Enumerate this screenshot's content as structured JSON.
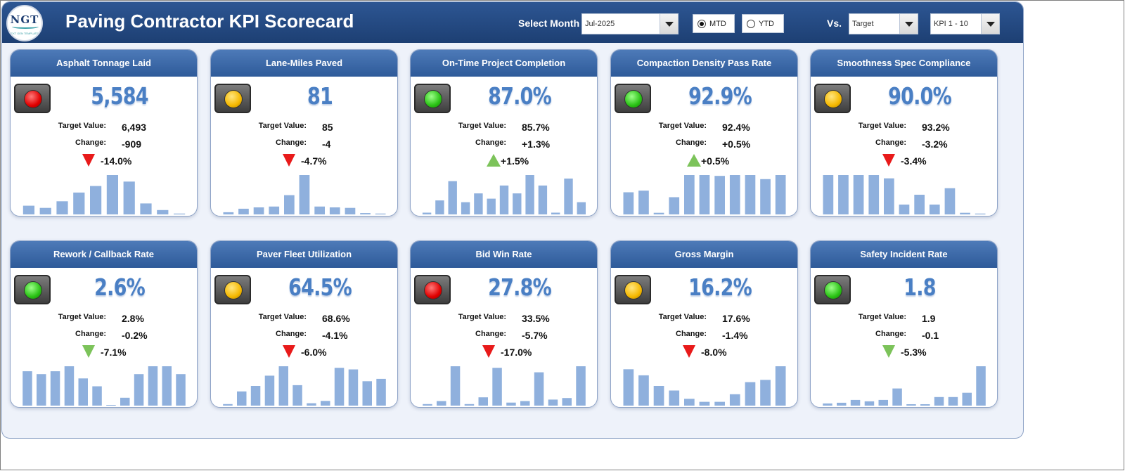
{
  "header": {
    "title": "Paving Contractor KPI Scorecard",
    "logo": {
      "text": "NGT",
      "subtext": "NEXT GEN TEMPLATES"
    },
    "select_month_label": "Select Month",
    "month_value": "Jul-2025",
    "mtd_label": "MTD",
    "ytd_label": "YTD",
    "period_selected": "MTD",
    "vs_label": "Vs.",
    "vs_value": "Target",
    "kpi_range_value": "KPI 1 - 10"
  },
  "colors": {
    "bar": "#8fb0dd",
    "up_green": "#7cc35a",
    "down_red": "#e81a1a",
    "header_blue": "#1f4378",
    "value_blue": "#4a7fc4"
  },
  "labels": {
    "target": "Target Value:",
    "change": "Change:"
  },
  "kpis": [
    {
      "name": "Asphalt Tonnage Laid",
      "value": "5,584",
      "target": "6,493",
      "change": "-909",
      "pct": "-14.0%",
      "status": "red",
      "arrow": "down",
      "arrow_color": "red",
      "trend": [
        2,
        1.5,
        3,
        5,
        6.5,
        9,
        7.5,
        2.5,
        1,
        0.2
      ]
    },
    {
      "name": "Lane-Miles Paved",
      "value": "81",
      "target": "85",
      "change": "-4",
      "pct": "-4.7%",
      "status": "amber",
      "arrow": "down",
      "arrow_color": "red",
      "trend": [
        0.5,
        1.3,
        1.6,
        1.8,
        4.4,
        9,
        1.8,
        1.6,
        1.5,
        0.3,
        0.2
      ]
    },
    {
      "name": "On-Time Project Completion",
      "value": "87.0%",
      "target": "85.7%",
      "change": "+1.3%",
      "pct": "+1.5%",
      "status": "green",
      "arrow": "up",
      "arrow_color": "green",
      "trend": [
        0.2,
        1.6,
        3.8,
        1.4,
        2.4,
        1.8,
        3.3,
        2.4,
        4.5,
        3.3,
        0.2,
        4.1,
        1.4
      ]
    },
    {
      "name": "Compaction Density Pass Rate",
      "value": "92.9%",
      "target": "92.4%",
      "change": "+0.5%",
      "pct": "+0.5%",
      "status": "green",
      "arrow": "up",
      "arrow_color": "green",
      "trend": [
        2.7,
        2.9,
        0.2,
        2.1,
        4.8,
        4.8,
        4.7,
        4.8,
        4.8,
        4.3,
        4.8
      ]
    },
    {
      "name": "Smoothness Spec Compliance",
      "value": "90.0%",
      "target": "93.2%",
      "change": "-3.2%",
      "pct": "-3.4%",
      "status": "amber",
      "arrow": "down",
      "arrow_color": "red",
      "trend": [
        4.8,
        4.8,
        4.8,
        4.8,
        4.4,
        1.2,
        2.4,
        1.2,
        3.2,
        0.2,
        0.1
      ]
    },
    {
      "name": "Rework / Callback Rate",
      "value": "2.6%",
      "target": "2.8%",
      "change": "-0.2%",
      "pct": "-7.1%",
      "status": "green",
      "arrow": "down",
      "arrow_color": "green",
      "trend": [
        4.8,
        4.4,
        4.8,
        5.5,
        3.8,
        2.7,
        0.1,
        1.1,
        4.4,
        5.5,
        5.5,
        4.4
      ]
    },
    {
      "name": "Paver Fleet Utilization",
      "value": "64.5%",
      "target": "68.6%",
      "change": "-4.1%",
      "pct": "-6.0%",
      "status": "amber",
      "arrow": "down",
      "arrow_color": "red",
      "trend": [
        0.2,
        1.8,
        2.5,
        3.8,
        5,
        2.6,
        0.3,
        0.6,
        4.8,
        4.6,
        3.1,
        3.4
      ]
    },
    {
      "name": "Bid Win Rate",
      "value": "27.8%",
      "target": "33.5%",
      "change": "-5.7%",
      "pct": "-17.0%",
      "status": "red",
      "arrow": "down",
      "arrow_color": "red",
      "trend": [
        0.2,
        0.6,
        5.2,
        0.2,
        1.1,
        5,
        0.4,
        0.6,
        4.4,
        0.8,
        1,
        5.2
      ]
    },
    {
      "name": "Gross Margin",
      "value": "16.2%",
      "target": "17.6%",
      "change": "-1.4%",
      "pct": "-8.0%",
      "status": "amber",
      "arrow": "down",
      "arrow_color": "red",
      "trend": [
        4.8,
        4,
        2.6,
        2,
        0.9,
        0.5,
        0.5,
        1.5,
        3.1,
        3.4,
        5.2
      ]
    },
    {
      "name": "Safety Incident Rate",
      "value": "1.8",
      "target": "1.9",
      "change": "-0.1",
      "pct": "-5.3%",
      "status": "green",
      "arrow": "down",
      "arrow_color": "green",
      "trend": [
        0.3,
        0.4,
        0.8,
        0.6,
        0.8,
        2.4,
        0.2,
        0.2,
        1.2,
        1.2,
        1.8,
        5.5
      ]
    }
  ]
}
